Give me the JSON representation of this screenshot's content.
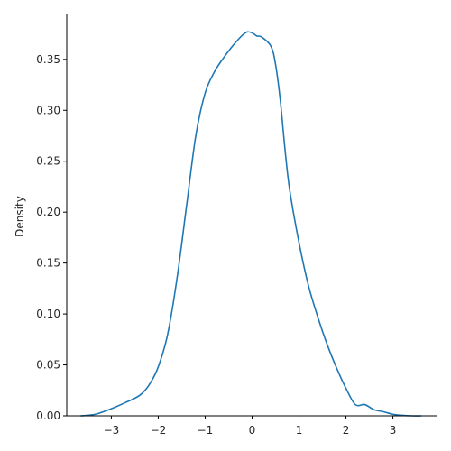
{
  "chart_data": {
    "type": "line",
    "title": "",
    "xlabel": "",
    "ylabel": "Density",
    "xlim": [
      -3.95,
      3.95
    ],
    "ylim": [
      0,
      0.395
    ],
    "grid": false,
    "color": "#1f77b4",
    "x_ticks": [
      {
        "value": -3,
        "label": "−3"
      },
      {
        "value": -2,
        "label": "−2"
      },
      {
        "value": -1,
        "label": "−1"
      },
      {
        "value": 0,
        "label": "0"
      },
      {
        "value": 1,
        "label": "1"
      },
      {
        "value": 2,
        "label": "2"
      },
      {
        "value": 3,
        "label": "3"
      }
    ],
    "y_ticks": [
      {
        "value": 0.0,
        "label": "0.00"
      },
      {
        "value": 0.05,
        "label": "0.05"
      },
      {
        "value": 0.1,
        "label": "0.10"
      },
      {
        "value": 0.15,
        "label": "0.15"
      },
      {
        "value": 0.2,
        "label": "0.20"
      },
      {
        "value": 0.25,
        "label": "0.25"
      },
      {
        "value": 0.3,
        "label": "0.30"
      },
      {
        "value": 0.35,
        "label": "0.35"
      }
    ],
    "series": [
      {
        "x": [
          -3.65,
          -3.5,
          -3.3,
          -3.0,
          -2.7,
          -2.4,
          -2.2,
          -2.0,
          -1.8,
          -1.6,
          -1.4,
          -1.2,
          -1.0,
          -0.8,
          -0.6,
          -0.4,
          -0.2,
          -0.1,
          0.0,
          0.1,
          0.2,
          0.4,
          0.5,
          0.6,
          0.7,
          0.8,
          1.0,
          1.2,
          1.4,
          1.6,
          1.8,
          2.0,
          2.2,
          2.4,
          2.6,
          2.8,
          3.0,
          3.2,
          3.4,
          3.6
        ],
        "y": [
          0.0,
          0.0005,
          0.002,
          0.007,
          0.013,
          0.02,
          0.03,
          0.048,
          0.08,
          0.135,
          0.205,
          0.275,
          0.317,
          0.338,
          0.352,
          0.364,
          0.374,
          0.377,
          0.376,
          0.373,
          0.372,
          0.363,
          0.345,
          0.31,
          0.262,
          0.222,
          0.17,
          0.128,
          0.097,
          0.07,
          0.047,
          0.027,
          0.011,
          0.011,
          0.006,
          0.004,
          0.0015,
          0.0005,
          0.0,
          0.0
        ]
      }
    ]
  }
}
